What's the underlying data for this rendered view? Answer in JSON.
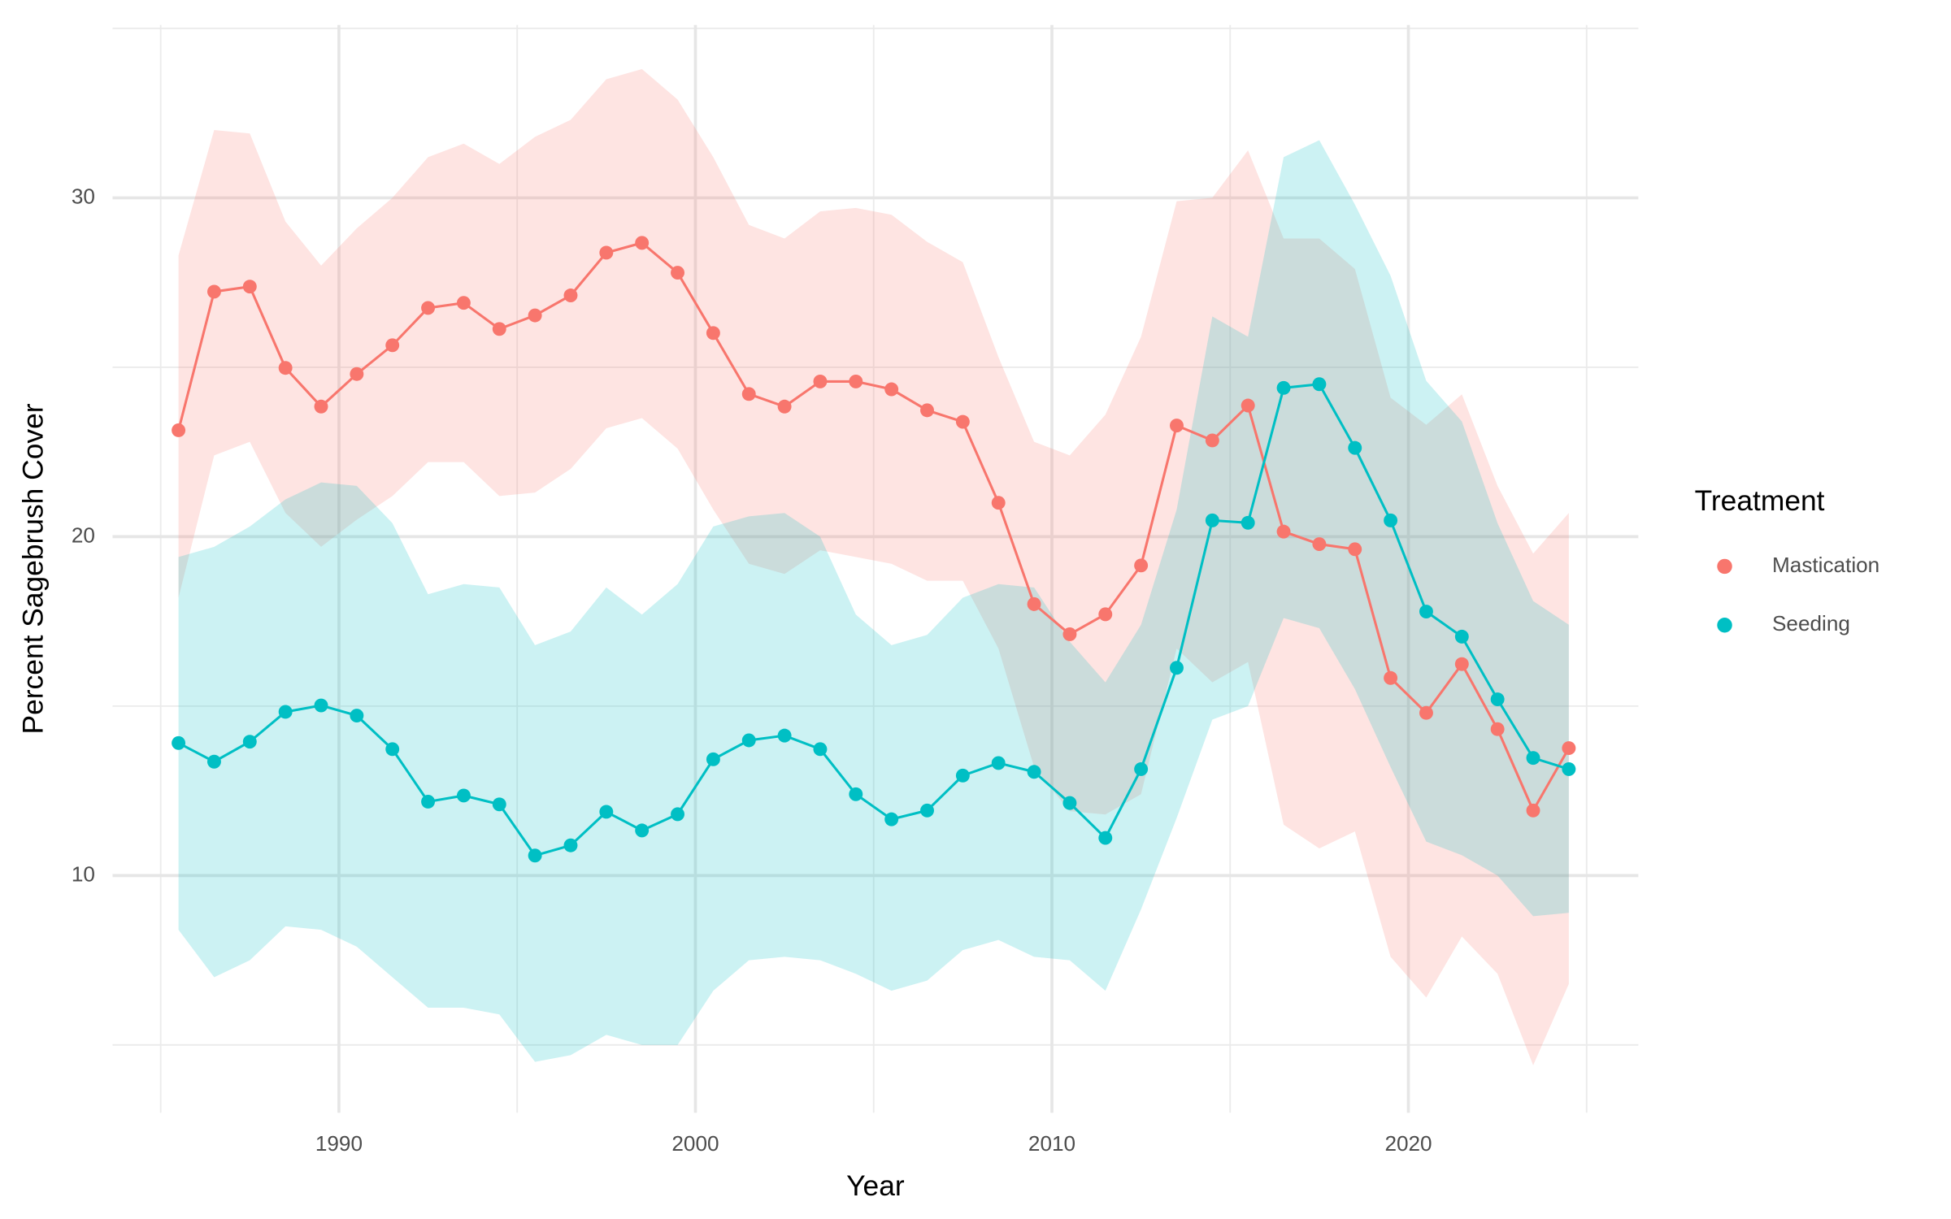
{
  "chart_data": {
    "type": "line",
    "x_label": "Year",
    "y_label": "Percent Sagebrush Cover",
    "legend_title": "Treatment",
    "legend_position": "right",
    "grid": true,
    "x": [
      1985.5,
      1986.5,
      1987.5,
      1988.5,
      1989.5,
      1990.5,
      1991.5,
      1992.5,
      1993.5,
      1994.5,
      1995.5,
      1996.5,
      1997.5,
      1998.5,
      1999.5,
      2000.5,
      2001.5,
      2002.5,
      2003.5,
      2004.5,
      2005.5,
      2006.5,
      2007.5,
      2008.5,
      2009.5,
      2010.5,
      2011.5,
      2012.5,
      2013.5,
      2014.5,
      2015.5,
      2016.5,
      2017.5,
      2018.5,
      2019.5,
      2020.5,
      2021.5,
      2022.5,
      2023.5,
      2024.5
    ],
    "xlim": [
      1983.65,
      2026.45
    ],
    "xticks": [
      1990,
      2000,
      2010,
      2020
    ],
    "xminor": [
      1985,
      1995,
      2005,
      2015,
      2025
    ],
    "ylim": [
      3.0,
      35.1
    ],
    "yticks": [
      10,
      20,
      30
    ],
    "yminor": [
      5,
      15,
      25,
      35
    ],
    "series": [
      {
        "name": "Mastication",
        "color": "#F8766D",
        "values": [
          23.14,
          27.23,
          27.38,
          24.98,
          23.84,
          24.8,
          25.65,
          26.75,
          26.9,
          26.13,
          26.53,
          27.12,
          28.38,
          28.67,
          27.79,
          26.01,
          24.21,
          23.84,
          24.58,
          24.58,
          24.35,
          23.73,
          23.39,
          21.0,
          18.01,
          17.12,
          17.71,
          19.15,
          23.28,
          22.84,
          23.87,
          20.15,
          19.78,
          19.63,
          15.83,
          14.8,
          16.24,
          14.32,
          11.92,
          13.76
        ],
        "upper": [
          28.3,
          32.0,
          31.9,
          29.3,
          28.0,
          29.1,
          30.0,
          31.2,
          31.6,
          31.0,
          31.8,
          32.3,
          33.5,
          33.8,
          32.9,
          31.2,
          29.2,
          28.8,
          29.6,
          29.7,
          29.5,
          28.7,
          28.1,
          25.3,
          22.8,
          22.4,
          23.6,
          25.9,
          29.9,
          30.0,
          31.4,
          28.8,
          28.8,
          27.9,
          24.1,
          23.3,
          24.2,
          21.5,
          19.5,
          20.7
        ],
        "lower": [
          18.2,
          22.4,
          22.8,
          20.7,
          19.7,
          20.5,
          21.2,
          22.2,
          22.2,
          21.2,
          21.3,
          22.0,
          23.2,
          23.5,
          22.6,
          20.8,
          19.2,
          18.9,
          19.6,
          19.4,
          19.2,
          18.7,
          18.7,
          16.7,
          13.2,
          11.9,
          11.8,
          12.4,
          16.7,
          15.7,
          16.3,
          11.5,
          10.8,
          11.3,
          7.6,
          6.4,
          8.2,
          7.1,
          4.4,
          6.8
        ]
      },
      {
        "name": "Seeding",
        "color": "#00BFC4",
        "values": [
          13.91,
          13.36,
          13.95,
          14.83,
          15.02,
          14.72,
          13.73,
          12.18,
          12.36,
          12.1,
          10.59,
          10.89,
          11.88,
          11.33,
          11.81,
          13.43,
          13.99,
          14.13,
          13.73,
          12.4,
          11.66,
          11.92,
          12.95,
          13.32,
          13.06,
          12.14,
          11.11,
          13.14,
          16.13,
          20.48,
          20.41,
          24.39,
          24.5,
          22.62,
          20.48,
          17.79,
          17.05,
          15.2,
          13.47,
          13.14
        ],
        "upper": [
          19.4,
          19.7,
          20.3,
          21.1,
          21.6,
          21.5,
          20.4,
          18.3,
          18.6,
          18.5,
          16.8,
          17.2,
          18.5,
          17.7,
          18.6,
          20.3,
          20.6,
          20.7,
          20.0,
          17.7,
          16.8,
          17.1,
          18.2,
          18.6,
          18.5,
          16.9,
          15.7,
          17.4,
          20.8,
          26.5,
          25.9,
          31.2,
          31.7,
          29.8,
          27.7,
          24.6,
          23.4,
          20.4,
          18.1,
          17.4
        ],
        "lower": [
          8.4,
          7.0,
          7.5,
          8.5,
          8.4,
          7.9,
          7.0,
          6.1,
          6.1,
          5.9,
          4.5,
          4.7,
          5.3,
          5.0,
          5.0,
          6.6,
          7.5,
          7.6,
          7.5,
          7.1,
          6.6,
          6.9,
          7.8,
          8.1,
          7.6,
          7.5,
          6.6,
          9.0,
          11.7,
          14.6,
          15.0,
          17.6,
          17.3,
          15.5,
          13.2,
          11.0,
          10.6,
          10.0,
          8.8,
          8.9
        ]
      }
    ]
  }
}
